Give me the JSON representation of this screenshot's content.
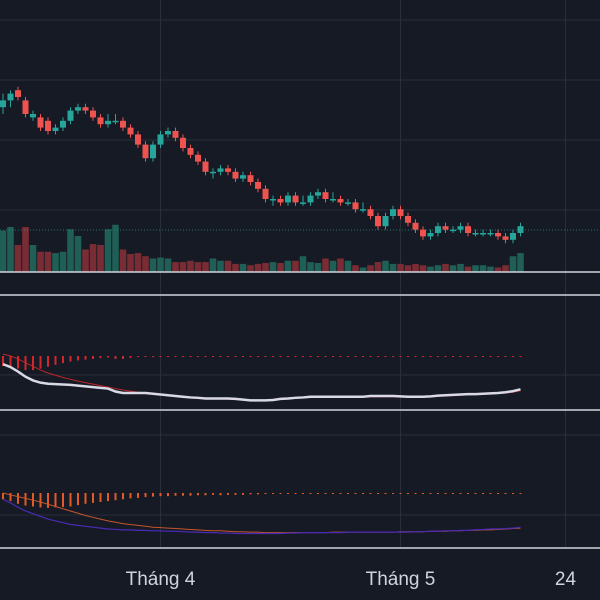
{
  "colors": {
    "background": "#161a25",
    "grid": "#2a2e39",
    "separator": "#d1d4dc",
    "up": "#26a69a",
    "down": "#ef5350",
    "volume_up": "#1f5f55",
    "volume_down": "#7a2c34",
    "volume_base": "#d1d4dc",
    "macd1_line": "#d9d9e6",
    "macd1_signal": "#c0252b",
    "macd1_hist": "#d3262d",
    "macd2_line": "#4a2bb5",
    "macd2_signal": "#c4562a",
    "macd2_hist": "#e25b26",
    "reference_line": "#26a69a"
  },
  "chart_data": {
    "type": "candlestick",
    "x_tick_labels": [
      {
        "label": "Tháng 4",
        "index": 21
      },
      {
        "label": "Tháng 5",
        "index": 53
      },
      {
        "label": "24",
        "index": 75
      }
    ],
    "candles": [
      [
        82,
        84,
        86,
        80
      ],
      [
        84,
        86,
        87,
        82
      ],
      [
        87,
        85,
        88,
        84
      ],
      [
        84,
        80,
        85,
        79
      ],
      [
        79,
        80,
        81,
        78
      ],
      [
        79,
        76,
        80,
        75
      ],
      [
        78,
        75,
        79,
        74
      ],
      [
        75,
        76,
        77,
        74
      ],
      [
        76,
        78,
        79,
        75
      ],
      [
        78,
        81,
        82,
        77
      ],
      [
        81,
        82,
        83,
        80
      ],
      [
        82,
        81,
        83,
        80
      ],
      [
        81,
        79,
        82,
        78
      ],
      [
        79,
        77,
        80,
        76
      ],
      [
        77,
        78,
        80,
        76
      ],
      [
        78,
        78,
        80,
        77
      ],
      [
        78,
        76,
        79,
        75
      ],
      [
        76,
        74,
        77,
        73
      ],
      [
        74,
        71,
        75,
        70
      ],
      [
        71,
        67,
        72,
        66
      ],
      [
        67,
        71,
        72,
        66
      ],
      [
        71,
        74,
        75,
        70
      ],
      [
        74,
        75,
        76,
        73
      ],
      [
        75,
        73,
        76,
        72
      ],
      [
        73,
        70,
        74,
        69
      ],
      [
        70,
        68,
        71,
        67
      ],
      [
        68,
        66,
        69,
        65
      ],
      [
        66,
        63,
        67,
        62
      ],
      [
        63,
        63,
        64,
        61
      ],
      [
        63,
        64,
        65,
        62
      ],
      [
        64,
        63,
        65,
        62
      ],
      [
        63,
        61,
        64,
        60
      ],
      [
        61,
        62,
        63,
        60
      ],
      [
        62,
        60,
        63,
        59
      ],
      [
        60,
        58,
        61,
        57
      ],
      [
        58,
        55,
        59,
        54
      ],
      [
        55,
        55,
        56,
        53
      ],
      [
        55,
        54,
        56,
        53
      ],
      [
        54,
        56,
        57,
        53
      ],
      [
        56,
        54,
        57,
        53
      ],
      [
        54,
        54,
        56,
        53
      ],
      [
        54,
        56,
        57,
        53
      ],
      [
        56,
        57,
        58,
        55
      ],
      [
        57,
        55,
        58,
        54
      ],
      [
        55,
        55,
        57,
        54
      ],
      [
        55,
        54,
        56,
        53
      ],
      [
        54,
        54,
        55,
        53
      ],
      [
        54,
        52,
        55,
        51
      ],
      [
        52,
        52,
        54,
        51
      ],
      [
        52,
        50,
        53,
        49
      ],
      [
        50,
        47,
        51,
        46
      ],
      [
        47,
        50,
        51,
        46
      ],
      [
        50,
        52,
        53,
        49
      ],
      [
        52,
        50,
        53,
        49
      ],
      [
        50,
        48,
        51,
        47
      ],
      [
        48,
        46,
        49,
        45
      ],
      [
        46,
        44,
        47,
        43
      ],
      [
        44,
        45,
        46,
        43
      ],
      [
        45,
        47,
        48,
        44
      ],
      [
        47,
        46,
        48,
        45
      ],
      [
        46,
        46,
        47,
        45
      ],
      [
        46,
        47,
        48,
        45
      ],
      [
        47,
        45,
        48,
        44
      ],
      [
        45,
        45,
        46,
        44
      ],
      [
        45,
        45,
        46,
        44
      ],
      [
        45,
        45,
        46,
        44
      ],
      [
        45,
        44,
        46,
        43
      ],
      [
        44,
        43,
        45,
        42
      ],
      [
        43,
        45,
        46,
        42
      ],
      [
        45,
        47,
        48,
        44
      ]
    ],
    "volume": [
      92,
      100,
      60,
      100,
      60,
      45,
      45,
      42,
      45,
      95,
      80,
      50,
      62,
      60,
      95,
      105,
      50,
      40,
      42,
      35,
      30,
      32,
      30,
      22,
      22,
      25,
      22,
      22,
      30,
      25,
      25,
      18,
      18,
      15,
      18,
      20,
      22,
      20,
      25,
      25,
      35,
      22,
      20,
      30,
      25,
      30,
      25,
      15,
      10,
      15,
      22,
      25,
      18,
      18,
      15,
      18,
      15,
      12,
      15,
      18,
      15,
      18,
      12,
      15,
      15,
      12,
      10,
      15,
      35,
      42
    ],
    "macd1": {
      "line": [
        -22,
        -30,
        -42,
        -56,
        -66,
        -72,
        -75,
        -76,
        -77,
        -78,
        -80,
        -82,
        -84,
        -86,
        -88,
        -96,
        -100,
        -100,
        -100,
        -100,
        -102,
        -104,
        -106,
        -108,
        -110,
        -112,
        -113,
        -115,
        -115,
        -115,
        -115,
        -116,
        -118,
        -120,
        -120,
        -120,
        -119,
        -116,
        -115,
        -113,
        -112,
        -110,
        -110,
        -110,
        -110,
        -110,
        -110,
        -110,
        -110,
        -108,
        -108,
        -108,
        -108,
        -109,
        -110,
        -110,
        -110,
        -109,
        -107,
        -106,
        -105,
        -104,
        -103,
        -103,
        -102,
        -101,
        -100,
        -98,
        -95,
        -90
      ],
      "signal": [
        5,
        0,
        -8,
        -18,
        -28,
        -38,
        -46,
        -52,
        -58,
        -63,
        -68,
        -72,
        -76,
        -80,
        -84,
        -88,
        -92,
        -95,
        -98,
        -100,
        -102,
        -104,
        -106,
        -108,
        -110,
        -111,
        -113,
        -114,
        -115,
        -116,
        -117,
        -118,
        -118,
        -119,
        -119,
        -119,
        -118,
        -117,
        -116,
        -114,
        -113,
        -112,
        -111,
        -111,
        -111,
        -111,
        -111,
        -111,
        -111,
        -110,
        -110,
        -110,
        -110,
        -110,
        -110,
        -110,
        -110,
        -110,
        -109,
        -108,
        -107,
        -106,
        -105,
        -104,
        -103,
        -102,
        -101,
        -100,
        -98,
        -94
      ],
      "histogram": [
        -27,
        -30,
        -34,
        -38,
        -38,
        -34,
        -29,
        -24,
        -19,
        -15,
        -12,
        -10,
        -8,
        -6,
        -4,
        -8,
        -8,
        -5,
        -2,
        0,
        -3,
        -3,
        -2,
        -2,
        -2,
        -1,
        -1,
        -1,
        -1,
        -1,
        -1,
        -1,
        -1,
        -1,
        -1,
        0,
        0,
        0,
        0,
        0,
        0,
        0,
        0,
        0,
        0,
        0,
        0,
        0,
        0,
        0,
        0,
        0,
        0,
        0,
        0,
        0,
        0,
        0,
        0,
        0,
        0,
        0,
        0,
        0,
        0,
        0,
        0,
        0,
        0,
        0
      ]
    },
    "macd2": {
      "line": [
        -14,
        -22,
        -32,
        -40,
        -46,
        -52,
        -58,
        -62,
        -66,
        -70,
        -72,
        -74,
        -76,
        -78,
        -80,
        -81,
        -82,
        -82,
        -83,
        -83,
        -84,
        -84,
        -85,
        -85,
        -86,
        -87,
        -87,
        -88,
        -88,
        -89,
        -89,
        -90,
        -90,
        -90,
        -90,
        -90,
        -90,
        -90,
        -89,
        -89,
        -88,
        -88,
        -88,
        -88,
        -88,
        -88,
        -87,
        -87,
        -87,
        -87,
        -87,
        -87,
        -87,
        -87,
        -87,
        -86,
        -86,
        -85,
        -85,
        -84,
        -84,
        -83,
        -83,
        -82,
        -81,
        -80,
        -80,
        -79,
        -78,
        -76
      ],
      "signal": [
        0,
        -4,
        -8,
        -12,
        -16,
        -20,
        -25,
        -30,
        -35,
        -40,
        -45,
        -50,
        -54,
        -58,
        -62,
        -65,
        -68,
        -70,
        -72,
        -74,
        -76,
        -77,
        -78,
        -79,
        -80,
        -81,
        -82,
        -83,
        -84,
        -84,
        -85,
        -86,
        -86,
        -87,
        -87,
        -88,
        -88,
        -88,
        -88,
        -88,
        -88,
        -88,
        -88,
        -88,
        -87,
        -87,
        -87,
        -87,
        -87,
        -87,
        -87,
        -87,
        -87,
        -86,
        -86,
        -86,
        -86,
        -85,
        -85,
        -85,
        -84,
        -84,
        -83,
        -83,
        -82,
        -82,
        -81,
        -80,
        -79,
        -78
      ],
      "histogram": [
        -14,
        -18,
        -24,
        -28,
        -30,
        -32,
        -33,
        -32,
        -31,
        -30,
        -27,
        -24,
        -22,
        -20,
        -18,
        -16,
        -14,
        -12,
        -11,
        -9,
        -8,
        -7,
        -7,
        -6,
        -6,
        -6,
        -5,
        -5,
        -4,
        -5,
        -4,
        -4,
        -4,
        -3,
        -3,
        -2,
        -2,
        -2,
        -1,
        -1,
        0,
        0,
        0,
        0,
        0,
        0,
        0,
        0,
        0,
        0,
        0,
        0,
        0,
        0,
        0,
        0,
        0,
        0,
        0,
        0,
        0,
        0,
        0,
        0,
        0,
        0,
        0,
        0,
        0,
        0
      ]
    }
  }
}
